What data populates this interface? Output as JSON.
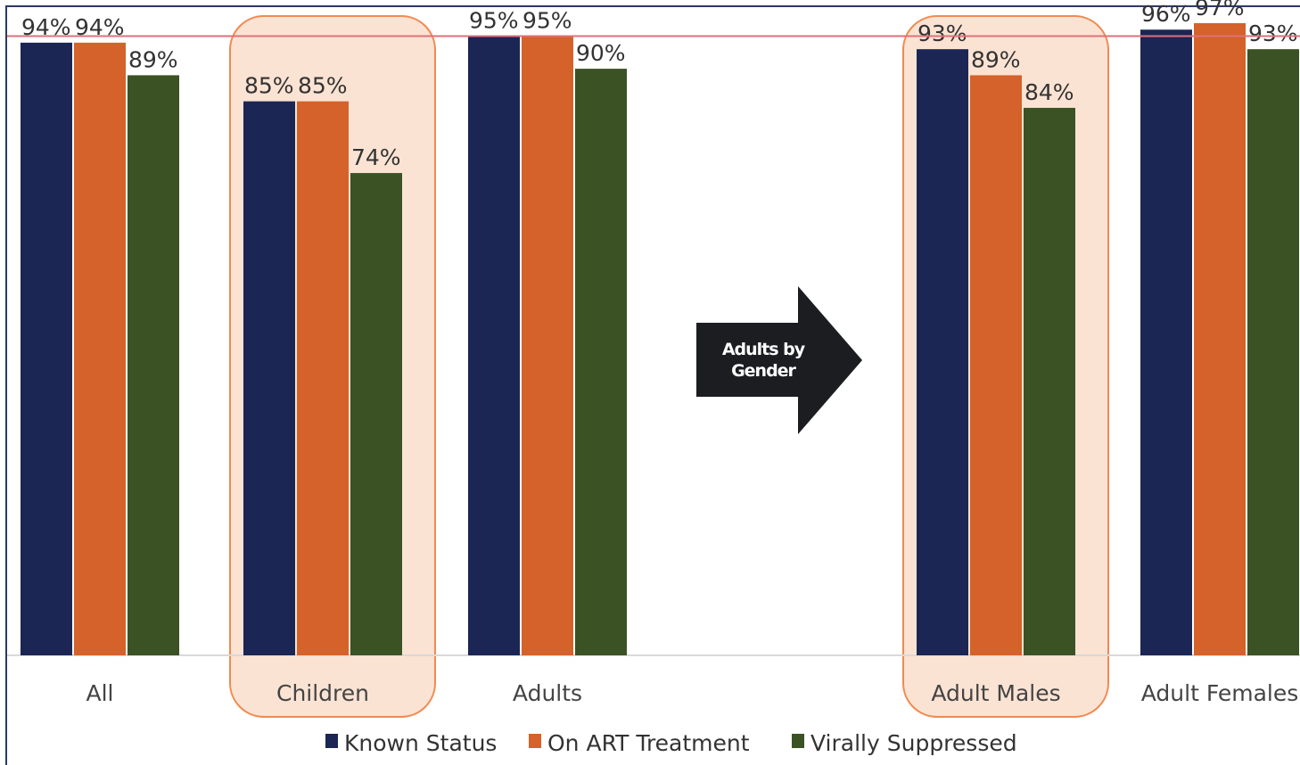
{
  "chart_data": {
    "type": "bar",
    "categories": [
      "All",
      "Children",
      "Adults",
      "Adult Males",
      "Adult Females"
    ],
    "series": [
      {
        "name": "Known Status",
        "values": [
          94,
          85,
          95,
          93,
          96
        ]
      },
      {
        "name": "On ART Treatment",
        "values": [
          94,
          85,
          95,
          89,
          97
        ]
      },
      {
        "name": "Virally Suppressed",
        "values": [
          89,
          74,
          90,
          84,
          93
        ]
      }
    ],
    "value_labels": [
      [
        "94%",
        "85%",
        "95%",
        "93%",
        "96%"
      ],
      [
        "94%",
        "85%",
        "95%",
        "89%",
        "97%"
      ],
      [
        "89%",
        "74%",
        "90%",
        "84%",
        "93%"
      ]
    ],
    "highlighted_categories": [
      "Children",
      "Adult Males"
    ],
    "reference_line": 95,
    "ylim": [
      0,
      100
    ],
    "grid": false,
    "legend_position": "bottom",
    "colors": {
      "series": [
        "#1b2654",
        "#d4622a",
        "#3a5224"
      ],
      "highlight_fill": "#fbe3d3",
      "highlight_stroke": "#f08a50",
      "reference_line": "#e0707a",
      "arrow_fill": "#1b1d21"
    },
    "arrow": {
      "label_line1": "Adults by",
      "label_line2": "Gender"
    }
  }
}
